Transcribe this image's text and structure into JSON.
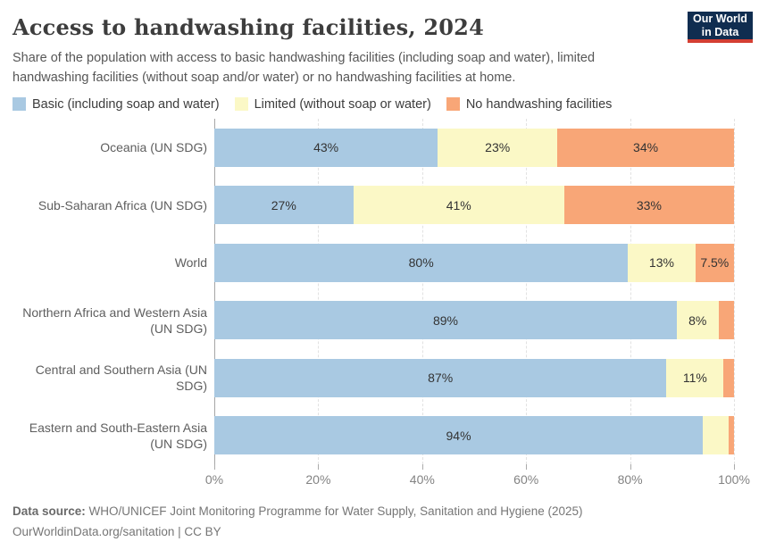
{
  "header": {
    "title": "Access to handwashing facilities, 2024",
    "subtitle": "Share of the population with access to basic handwashing facilities (including soap and water), limited handwashing facilities (without soap and/or water) or no handwashing facilities at home.",
    "logo": {
      "line1": "Our World",
      "line2": "in Data"
    }
  },
  "chart_data": {
    "type": "bar",
    "orientation": "horizontal",
    "stacked": true,
    "title": "Access to handwashing facilities, 2024",
    "categories": [
      "Oceania (UN SDG)",
      "Sub-Saharan Africa (UN SDG)",
      "World",
      "Northern Africa and Western Asia (UN SDG)",
      "Central and Southern Asia (UN SDG)",
      "Eastern and South-Eastern Asia (UN SDG)"
    ],
    "series": [
      {
        "name": "Basic (including soap and water)",
        "color": "#a9c9e2",
        "values": [
          43,
          27,
          80,
          89,
          87,
          94
        ],
        "labels": [
          "43%",
          "27%",
          "80%",
          "89%",
          "87%",
          "94%"
        ]
      },
      {
        "name": "Limited (without soap or water)",
        "color": "#fbf8c6",
        "values": [
          23,
          41,
          13,
          8,
          11,
          5
        ],
        "labels": [
          "23%",
          "41%",
          "13%",
          "8%",
          "11%",
          ""
        ]
      },
      {
        "name": "No handwashing facilities",
        "color": "#f8a677",
        "values": [
          34,
          33,
          7.5,
          3,
          2,
          1
        ],
        "labels": [
          "34%",
          "33%",
          "7.5%",
          "",
          "",
          ""
        ]
      }
    ],
    "xlim": [
      0,
      100
    ],
    "xtick_values": [
      0,
      20,
      40,
      60,
      80,
      100
    ],
    "xtick_labels": [
      "0%",
      "20%",
      "40%",
      "60%",
      "80%",
      "100%"
    ],
    "grid": "dashed-vertical",
    "legend_position": "top"
  },
  "footer": {
    "datasource_label": "Data source:",
    "datasource_text": " WHO/UNICEF Joint Monitoring Programme for Water Supply, Sanitation and Hygiene (2025)",
    "link_line": "OurWorldinData.org/sanitation | CC BY"
  },
  "colors": {
    "basic": "#a9c9e2",
    "limited": "#fbf8c6",
    "none": "#f8a677",
    "logo_navy": "#102d50",
    "logo_red": "#d43f33"
  }
}
